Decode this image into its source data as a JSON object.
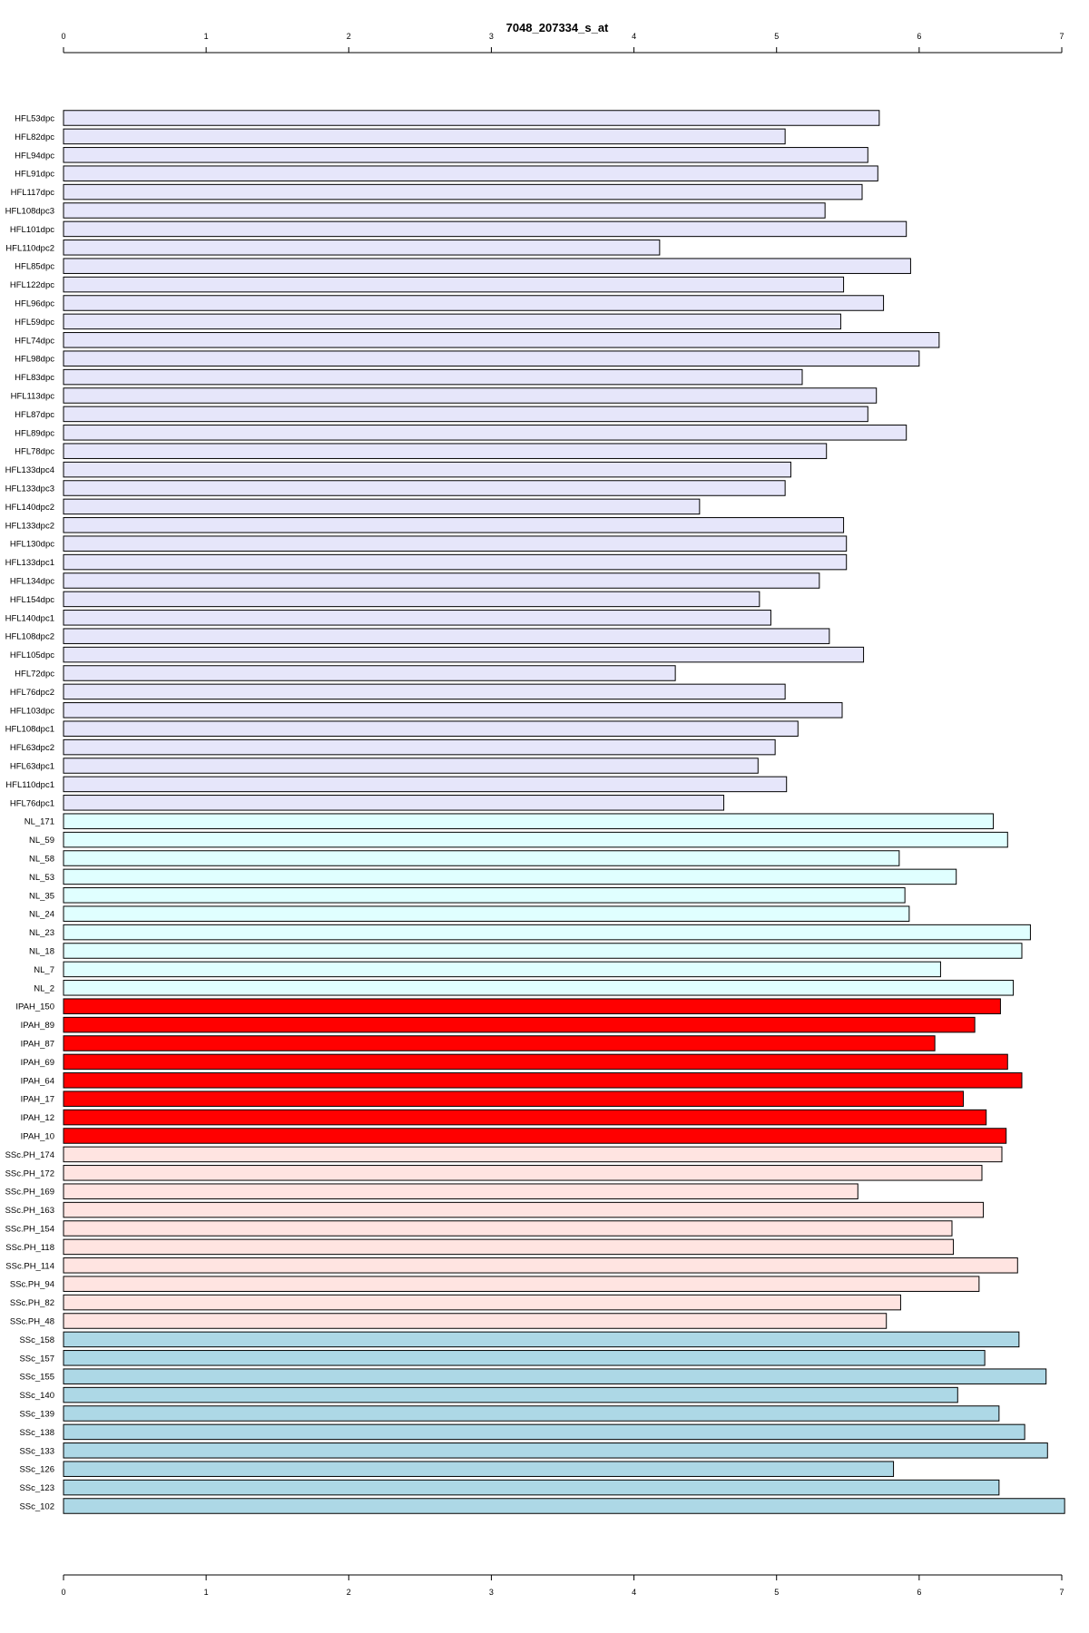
{
  "chart_data": {
    "type": "bar",
    "orientation": "horizontal",
    "title": "7048_207334_s_at",
    "xlabel": "",
    "ylabel": "",
    "xlim": [
      0,
      7
    ],
    "ticks": [
      "0",
      "1",
      "2",
      "3",
      "4",
      "5",
      "6",
      "7"
    ],
    "axis_positions": [
      "top",
      "bottom"
    ],
    "grid": false,
    "legend": "none",
    "group_colors": {
      "HFL": "#e6e6fa",
      "NL": "#e0ffff",
      "IPAH": "#ff0000",
      "SSc.PH": "#ffe4e1",
      "SSc": "#add8e6"
    },
    "categories": [
      "HFL53dpc",
      "HFL82dpc",
      "HFL94dpc",
      "HFL91dpc",
      "HFL117dpc",
      "HFL108dpc3",
      "HFL101dpc",
      "HFL110dpc2",
      "HFL85dpc",
      "HFL122dpc",
      "HFL96dpc",
      "HFL59dpc",
      "HFL74dpc",
      "HFL98dpc",
      "HFL83dpc",
      "HFL113dpc",
      "HFL87dpc",
      "HFL89dpc",
      "HFL78dpc",
      "HFL133dpc4",
      "HFL133dpc3",
      "HFL140dpc2",
      "HFL133dpc2",
      "HFL130dpc",
      "HFL133dpc1",
      "HFL134dpc",
      "HFL154dpc",
      "HFL140dpc1",
      "HFL108dpc2",
      "HFL105dpc",
      "HFL72dpc",
      "HFL76dpc2",
      "HFL103dpc",
      "HFL108dpc1",
      "HFL63dpc2",
      "HFL63dpc1",
      "HFL110dpc1",
      "HFL76dpc1",
      "NL_171",
      "NL_59",
      "NL_58",
      "NL_53",
      "NL_35",
      "NL_24",
      "NL_23",
      "NL_18",
      "NL_7",
      "NL_2",
      "IPAH_150",
      "IPAH_89",
      "IPAH_87",
      "IPAH_69",
      "IPAH_64",
      "IPAH_17",
      "IPAH_12",
      "IPAH_10",
      "SSc.PH_174",
      "SSc.PH_172",
      "SSc.PH_169",
      "SSc.PH_163",
      "SSc.PH_154",
      "SSc.PH_118",
      "SSc.PH_114",
      "SSc.PH_94",
      "SSc.PH_82",
      "SSc.PH_48",
      "SSc_158",
      "SSc_157",
      "SSc_155",
      "SSc_140",
      "SSc_139",
      "SSc_138",
      "SSc_133",
      "SSc_126",
      "SSc_123",
      "SSc_102"
    ],
    "groups": [
      "HFL",
      "HFL",
      "HFL",
      "HFL",
      "HFL",
      "HFL",
      "HFL",
      "HFL",
      "HFL",
      "HFL",
      "HFL",
      "HFL",
      "HFL",
      "HFL",
      "HFL",
      "HFL",
      "HFL",
      "HFL",
      "HFL",
      "HFL",
      "HFL",
      "HFL",
      "HFL",
      "HFL",
      "HFL",
      "HFL",
      "HFL",
      "HFL",
      "HFL",
      "HFL",
      "HFL",
      "HFL",
      "HFL",
      "HFL",
      "HFL",
      "HFL",
      "HFL",
      "HFL",
      "NL",
      "NL",
      "NL",
      "NL",
      "NL",
      "NL",
      "NL",
      "NL",
      "NL",
      "NL",
      "IPAH",
      "IPAH",
      "IPAH",
      "IPAH",
      "IPAH",
      "IPAH",
      "IPAH",
      "IPAH",
      "SSc.PH",
      "SSc.PH",
      "SSc.PH",
      "SSc.PH",
      "SSc.PH",
      "SSc.PH",
      "SSc.PH",
      "SSc.PH",
      "SSc.PH",
      "SSc.PH",
      "SSc",
      "SSc",
      "SSc",
      "SSc",
      "SSc",
      "SSc",
      "SSc",
      "SSc",
      "SSc",
      "SSc"
    ],
    "values": [
      5.72,
      5.06,
      5.64,
      5.71,
      5.6,
      5.34,
      5.91,
      4.18,
      5.94,
      5.47,
      5.75,
      5.45,
      6.14,
      6.0,
      5.18,
      5.7,
      5.64,
      5.91,
      5.35,
      5.1,
      5.06,
      4.46,
      5.47,
      5.49,
      5.49,
      5.3,
      4.88,
      4.96,
      5.37,
      5.61,
      4.29,
      5.06,
      5.46,
      5.15,
      4.99,
      4.87,
      5.07,
      4.63,
      6.52,
      6.62,
      5.86,
      6.26,
      5.9,
      5.93,
      6.78,
      6.72,
      6.15,
      6.66,
      6.57,
      6.39,
      6.11,
      6.62,
      6.72,
      6.31,
      6.47,
      6.61,
      6.58,
      6.44,
      5.57,
      6.45,
      6.23,
      6.24,
      6.69,
      6.42,
      5.87,
      5.77,
      6.7,
      6.46,
      6.89,
      6.27,
      6.56,
      6.74,
      6.9,
      5.82,
      6.56,
      7.02
    ]
  }
}
